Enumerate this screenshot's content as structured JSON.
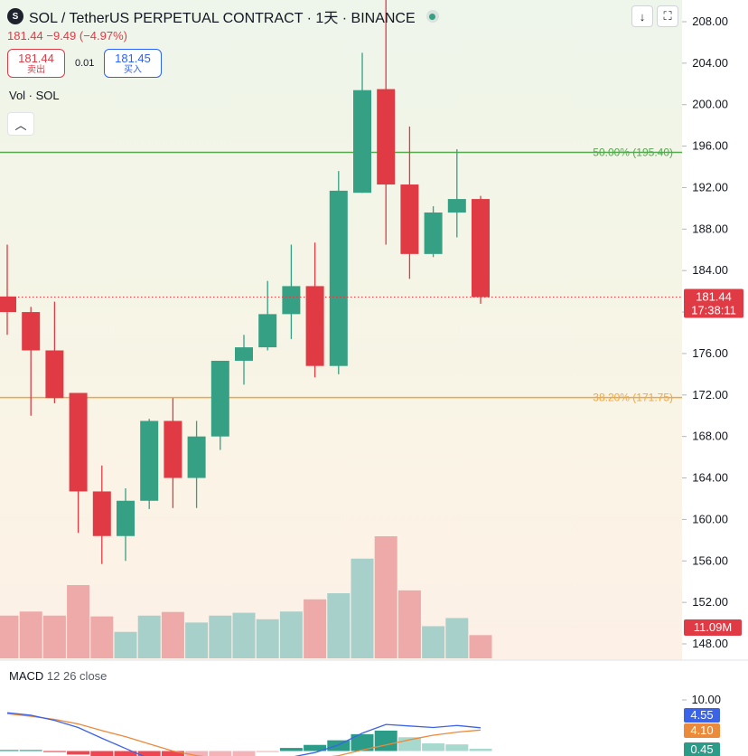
{
  "header": {
    "coin_icon": "S",
    "title": "SOL / TetherUS PERPETUAL CONTRACT · 1天 · BINANCE",
    "price_change": "181.44  −9.49  (−4.97%)",
    "sell_price": "181.44",
    "sell_label": "卖出",
    "spread": "0.01",
    "buy_price": "181.45",
    "buy_label": "买入",
    "download_icon": "download-icon",
    "fullscreen_icon": "fullscreen-icon"
  },
  "volume_label": "Vol · SOL",
  "collapse_icon": "chevron-up-icon",
  "colors": {
    "up": "#35a084",
    "down": "#e03b45",
    "up_vol": "#a7d0ca",
    "down_vol": "#eeaaa8",
    "fib50": "#55a94f",
    "fib382": "#f0a742",
    "macd_line": "#3b63e8",
    "signal_line": "#ec8a3b"
  },
  "chart_data": {
    "type": "candlestick",
    "y_range": [
      146,
      210
    ],
    "y_ticks": [
      "208.00",
      "204.00",
      "200.00",
      "196.00",
      "192.00",
      "188.00",
      "184.00",
      "180.00",
      "176.00",
      "172.00",
      "168.00",
      "164.00",
      "160.00",
      "156.00",
      "152.00",
      "148.00"
    ],
    "candles": [
      {
        "o": 181.5,
        "h": 186.5,
        "l": 177.8,
        "c": 180.0
      },
      {
        "o": 180.0,
        "h": 180.5,
        "l": 170.0,
        "c": 176.3
      },
      {
        "o": 176.3,
        "h": 181.0,
        "l": 171.2,
        "c": 171.7
      },
      {
        "o": 172.2,
        "h": 172.2,
        "l": 158.7,
        "c": 162.7
      },
      {
        "o": 162.7,
        "h": 165.2,
        "l": 155.7,
        "c": 158.4
      },
      {
        "o": 158.4,
        "h": 163.0,
        "l": 156.0,
        "c": 161.8
      },
      {
        "o": 161.8,
        "h": 169.7,
        "l": 161.0,
        "c": 169.5
      },
      {
        "o": 169.5,
        "h": 171.7,
        "l": 161.1,
        "c": 164.0
      },
      {
        "o": 164.0,
        "h": 169.5,
        "l": 161.1,
        "c": 168.0
      },
      {
        "o": 168.0,
        "h": 175.2,
        "l": 166.7,
        "c": 175.3
      },
      {
        "o": 175.3,
        "h": 177.8,
        "l": 173.0,
        "c": 176.6
      },
      {
        "o": 176.6,
        "h": 183.0,
        "l": 176.3,
        "c": 179.8
      },
      {
        "o": 179.8,
        "h": 186.5,
        "l": 177.4,
        "c": 182.5
      },
      {
        "o": 182.5,
        "h": 186.7,
        "l": 173.7,
        "c": 174.8
      },
      {
        "o": 174.8,
        "h": 193.6,
        "l": 174.0,
        "c": 191.7
      },
      {
        "o": 191.5,
        "h": 205.0,
        "l": 191.5,
        "c": 201.4
      },
      {
        "o": 201.5,
        "h": 212.0,
        "l": 186.5,
        "c": 192.3
      },
      {
        "o": 192.3,
        "h": 197.9,
        "l": 183.2,
        "c": 185.6
      },
      {
        "o": 185.6,
        "h": 190.2,
        "l": 185.3,
        "c": 189.6
      },
      {
        "o": 189.6,
        "h": 195.7,
        "l": 187.2,
        "c": 190.9
      },
      {
        "o": 190.9,
        "h": 191.2,
        "l": 180.8,
        "c": 181.44
      }
    ],
    "volume": [
      10.5,
      11.5,
      10.5,
      18.0,
      10.3,
      6.5,
      10.5,
      11.4,
      8.8,
      10.5,
      11.2,
      9.6,
      11.5,
      14.5,
      16.0,
      24.5,
      30.0,
      16.7,
      7.9,
      9.9,
      5.7
    ],
    "volume_max": 40,
    "current_price_label": "181.44",
    "countdown_label": "17:38:11",
    "volume_label_value": "11.09M",
    "fib_levels": [
      {
        "label": "50.00% (195.40)",
        "price": 195.4
      },
      {
        "label": "38.20% (171.75)",
        "price": 171.75
      }
    ]
  },
  "macd": {
    "label": "MACD",
    "params": "12  26  close",
    "y_tick": "10.00",
    "y_range": [
      -6,
      12
    ],
    "macd_value": "4.55",
    "signal_value": "4.10",
    "hist_value": "0.45",
    "macd_line": [
      7.5,
      7.0,
      6.0,
      4.6,
      2.5,
      0.5,
      -1.5,
      -3.0,
      -3.8,
      -3.5,
      -2.9,
      -2.2,
      -1.2,
      -0.3,
      1.2,
      3.5,
      5.2,
      4.9,
      4.6,
      5.0,
      4.55
    ],
    "signal_line": [
      7.3,
      6.8,
      6.2,
      5.3,
      4.0,
      2.8,
      1.4,
      0.0,
      -0.9,
      -1.5,
      -1.9,
      -2.0,
      -1.8,
      -1.5,
      -0.9,
      0.2,
      1.2,
      2.2,
      3.1,
      3.7,
      4.1
    ],
    "histogram": [
      0.2,
      0.2,
      -0.2,
      -0.7,
      -1.5,
      -2.3,
      -2.9,
      -3.0,
      -2.9,
      -2.0,
      -1.0,
      -0.2,
      0.6,
      1.2,
      2.1,
      3.3,
      4.0,
      2.7,
      1.5,
      1.3,
      0.45
    ]
  }
}
